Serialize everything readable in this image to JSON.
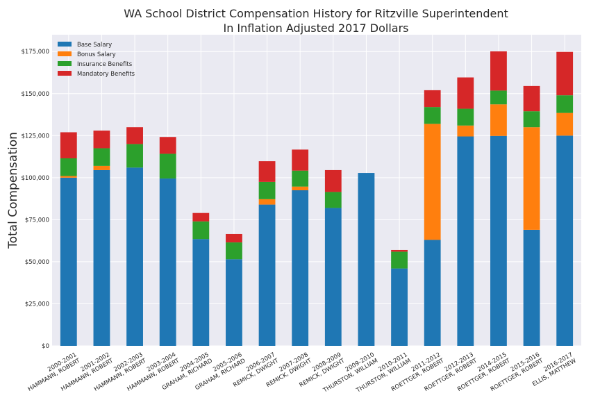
{
  "chart_data": {
    "type": "bar",
    "stacked": true,
    "title": "WA School District Compensation History for Ritzville Superintendent",
    "subtitle": "In Inflation Adjusted 2017 Dollars",
    "xlabel": "",
    "ylabel": "Total Compensation",
    "ylim": [
      0,
      185000
    ],
    "yticks": [
      {
        "value": 0,
        "label": "$0"
      },
      {
        "value": 25000,
        "label": "$25,000"
      },
      {
        "value": 50000,
        "label": "$50,000"
      },
      {
        "value": 75000,
        "label": "$75,000"
      },
      {
        "value": 100000,
        "label": "$100,000"
      },
      {
        "value": 125000,
        "label": "$125,000"
      },
      {
        "value": 150000,
        "label": "$150,000"
      },
      {
        "value": 175000,
        "label": "$175,000"
      }
    ],
    "grid": true,
    "legend_position": "top-left",
    "categories": [
      [
        "2000-2001",
        "HAMMANN, ROBERT"
      ],
      [
        "2001-2002",
        "HAMMANN, ROBERT"
      ],
      [
        "2002-2003",
        "HAMMANN, ROBERT"
      ],
      [
        "2003-2004",
        "HAMMANN, ROBERT"
      ],
      [
        "2004-2005",
        "GRAHAM, RICHARD"
      ],
      [
        "2005-2006",
        "GRAHAM, RICHARD"
      ],
      [
        "2006-2007",
        "REMICK, DWIGHT"
      ],
      [
        "2007-2008",
        "REMICK, DWIGHT"
      ],
      [
        "2008-2009",
        "REMICK, DWIGHT"
      ],
      [
        "2009-2010",
        "THURSTON, WILLIAM"
      ],
      [
        "2010-2011",
        "THURSTON, WILLIAM"
      ],
      [
        "2011-2012",
        "ROETTGER, ROBERT"
      ],
      [
        "2012-2013",
        "ROETTGER, ROBERT"
      ],
      [
        "2014-2015",
        "ROETTGER, ROBERT"
      ],
      [
        "2015-2016",
        "ROETTGER, ROBERT"
      ],
      [
        "2016-2017",
        "ELLIS, MATTHEW"
      ]
    ],
    "series": [
      {
        "name": "Base Salary",
        "color": "#1f77b4",
        "values": [
          100000,
          104500,
          106000,
          99500,
          63500,
          51500,
          84000,
          92500,
          82000,
          102800,
          46000,
          63000,
          124500,
          124800,
          69000,
          125000
        ]
      },
      {
        "name": "Bonus Salary",
        "color": "#ff7f0e",
        "values": [
          1000,
          2500,
          0,
          0,
          0,
          0,
          3200,
          2200,
          0,
          0,
          0,
          69000,
          6500,
          18800,
          61000,
          13500
        ]
      },
      {
        "name": "Insurance Benefits",
        "color": "#2ca02c",
        "values": [
          10500,
          10500,
          14000,
          14700,
          10500,
          10000,
          10300,
          9500,
          9500,
          0,
          10000,
          10000,
          10000,
          8200,
          9500,
          10500
        ]
      },
      {
        "name": "Mandatory Benefits",
        "color": "#d62728",
        "values": [
          15500,
          10500,
          10000,
          10000,
          5000,
          5000,
          12300,
          12500,
          13000,
          0,
          1000,
          10000,
          18600,
          23300,
          15000,
          25800
        ]
      }
    ]
  }
}
